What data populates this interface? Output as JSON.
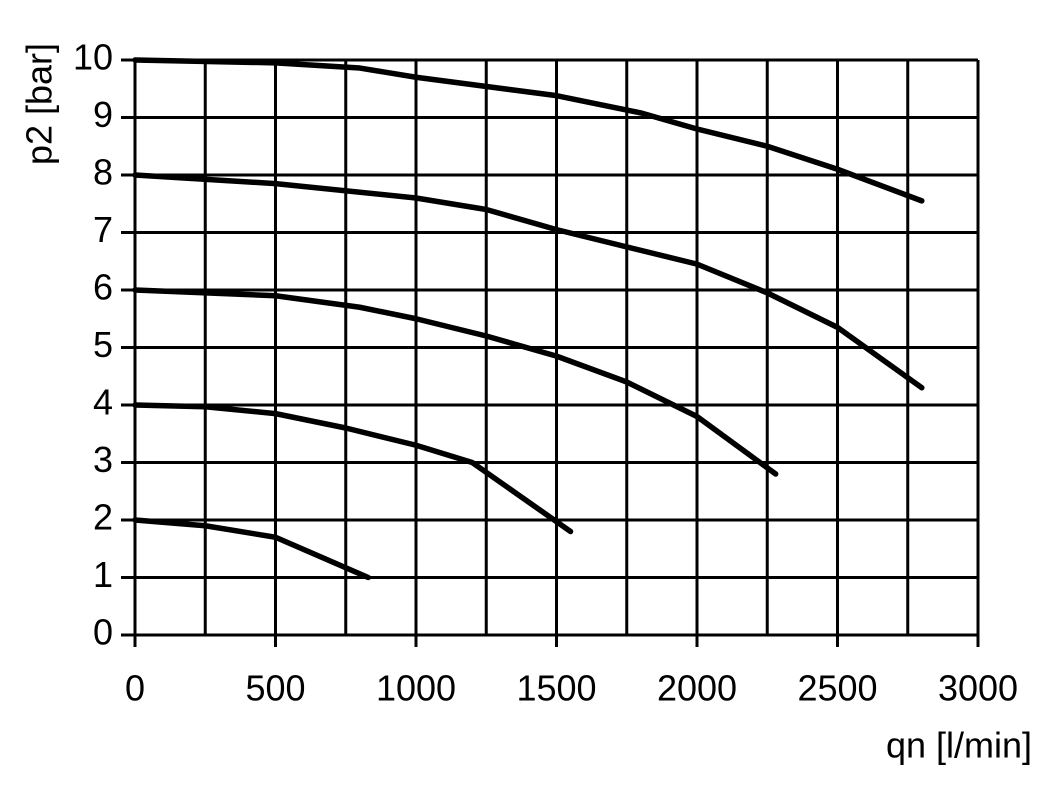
{
  "chart_data": {
    "type": "line",
    "x_label": "qn [l/min]",
    "y_label": "p2 [bar]",
    "xlim": [
      0,
      3000
    ],
    "ylim": [
      0,
      10
    ],
    "xticks": [
      0,
      500,
      1000,
      1500,
      2000,
      2500,
      3000
    ],
    "xgrid": [
      0,
      250,
      500,
      750,
      1000,
      1250,
      1500,
      1750,
      2000,
      2250,
      2500,
      2750,
      3000
    ],
    "yticks": [
      0,
      1,
      2,
      3,
      4,
      5,
      6,
      7,
      8,
      9,
      10
    ],
    "grid": true,
    "series": [
      {
        "color": "#000000",
        "x": [
          0,
          500,
          800,
          1000,
          1500,
          1800,
          2000,
          2250,
          2500,
          2800
        ],
        "values": [
          10,
          9.95,
          9.86,
          9.7,
          9.38,
          9.08,
          8.8,
          8.5,
          8.1,
          7.55
        ]
      },
      {
        "color": "#000000",
        "x": [
          0,
          500,
          1000,
          1250,
          1500,
          2000,
          2250,
          2500,
          2800
        ],
        "values": [
          8,
          7.85,
          7.6,
          7.4,
          7.05,
          6.45,
          5.95,
          5.35,
          4.3
        ]
      },
      {
        "color": "#000000",
        "x": [
          0,
          500,
          800,
          1000,
          1250,
          1500,
          1750,
          2000,
          2280
        ],
        "values": [
          6,
          5.9,
          5.7,
          5.5,
          5.2,
          4.85,
          4.4,
          3.8,
          2.8
        ]
      },
      {
        "color": "#000000",
        "x": [
          0,
          250,
          500,
          750,
          1000,
          1200,
          1550
        ],
        "values": [
          4,
          3.97,
          3.85,
          3.6,
          3.3,
          3.0,
          1.8
        ]
      },
      {
        "color": "#000000",
        "x": [
          0,
          250,
          500,
          830
        ],
        "values": [
          2,
          1.9,
          1.7,
          1.0
        ]
      }
    ]
  }
}
